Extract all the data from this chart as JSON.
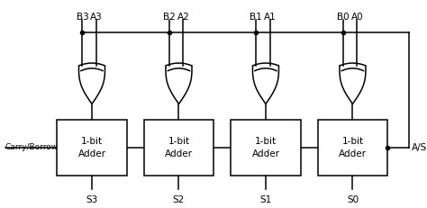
{
  "bg_color": "#ffffff",
  "line_color": "#000000",
  "adder_labels": [
    "1-bit\nAdder",
    "1-bit\nAdder",
    "1-bit\nAdder",
    "1-bit\nAdder"
  ],
  "s_labels": [
    "S3",
    "S2",
    "S1",
    "S0"
  ],
  "a_labels": [
    "A3",
    "A2",
    "A1",
    "A0"
  ],
  "b_labels": [
    "B3",
    "B2",
    "B1",
    "B0"
  ],
  "carry_label": "Carry/Borrow",
  "as_label": "A/S",
  "font_size": 7.5,
  "lw": 1.1
}
